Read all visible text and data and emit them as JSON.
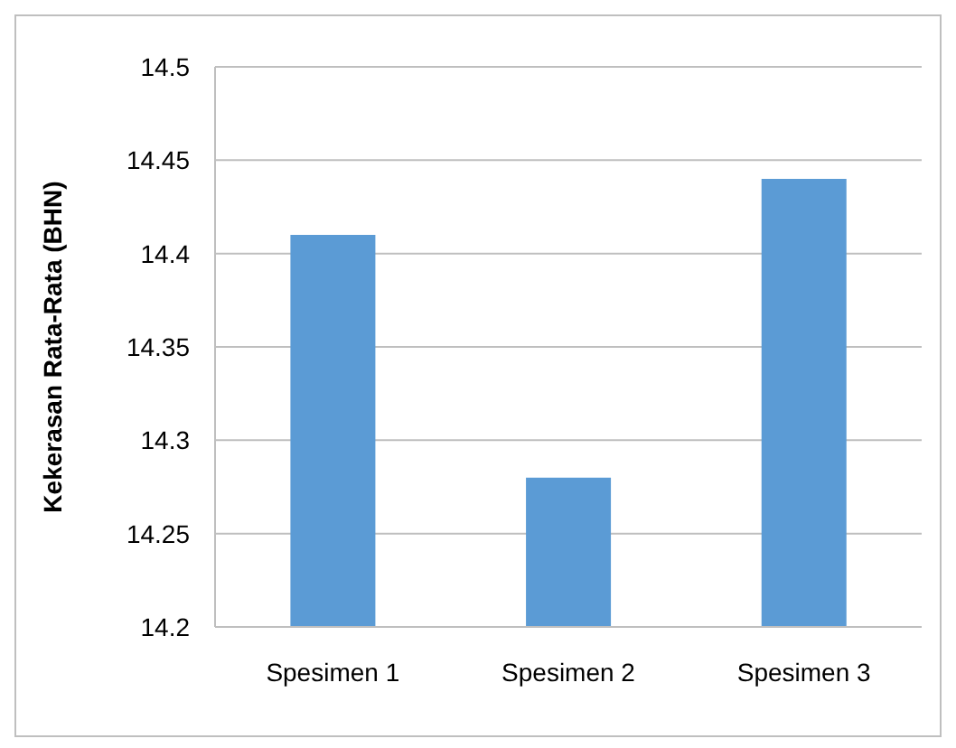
{
  "chart_data": {
    "type": "bar",
    "ylabel": "Kekerasan Rata-Rata  (BHN)",
    "categories": [
      "Spesimen  1",
      "Spesimen  2",
      "Spesimen  3"
    ],
    "values": [
      14.41,
      14.28,
      14.44
    ],
    "color": "#5b9bd5",
    "ylim": [
      14.2,
      14.5
    ],
    "yticks": [
      14.2,
      14.25,
      14.3,
      14.35,
      14.4,
      14.45,
      14.5
    ],
    "grid": "y",
    "legend": false
  }
}
